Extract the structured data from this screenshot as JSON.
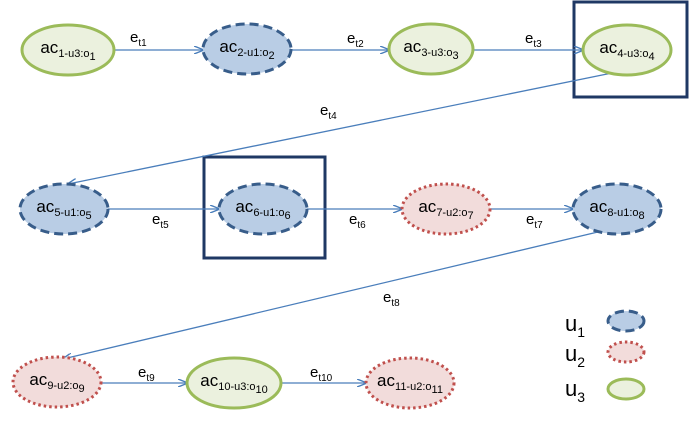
{
  "colors": {
    "u1_fill": "#b9cde5",
    "u1_stroke": "#385d8a",
    "u2_fill": "#f2dcdb",
    "u2_stroke": "#c0504d",
    "u3_fill": "#ebf1de",
    "u3_stroke": "#9bbb59",
    "edge": "#4a7ebb",
    "highlight_box": "#1f3864"
  },
  "nodes": [
    {
      "id": "ac1",
      "main": "ac",
      "sub": "1-u3:o",
      "subsub": "1",
      "user": "u3"
    },
    {
      "id": "ac2",
      "main": "ac",
      "sub": "2-u1:o",
      "subsub": "2",
      "user": "u1"
    },
    {
      "id": "ac3",
      "main": "ac",
      "sub": "3-u3:o",
      "subsub": "3",
      "user": "u3"
    },
    {
      "id": "ac4",
      "main": "ac",
      "sub": "4-u3:o",
      "subsub": "4",
      "user": "u3"
    },
    {
      "id": "ac5",
      "main": "ac",
      "sub": "5-u1:o",
      "subsub": "5",
      "user": "u1"
    },
    {
      "id": "ac6",
      "main": "ac",
      "sub": "6-u1:o",
      "subsub": "6",
      "user": "u1"
    },
    {
      "id": "ac7",
      "main": "ac",
      "sub": "7-u2:o",
      "subsub": "7",
      "user": "u2"
    },
    {
      "id": "ac8",
      "main": "ac",
      "sub": "8-u1:o",
      "subsub": "8",
      "user": "u1"
    },
    {
      "id": "ac9",
      "main": "ac",
      "sub": "9-u2:o",
      "subsub": "9",
      "user": "u2"
    },
    {
      "id": "ac10",
      "main": "ac",
      "sub": "10-u3:o",
      "subsub": "10",
      "user": "u3"
    },
    {
      "id": "ac11",
      "main": "ac",
      "sub": "11-u2:o",
      "subsub": "11",
      "user": "u2"
    }
  ],
  "edges": [
    {
      "from": "ac1",
      "to": "ac2",
      "main": "e",
      "sub": "t1"
    },
    {
      "from": "ac2",
      "to": "ac3",
      "main": "e",
      "sub": "t2"
    },
    {
      "from": "ac3",
      "to": "ac4",
      "main": "e",
      "sub": "t3"
    },
    {
      "from": "ac4",
      "to": "ac5",
      "main": "e",
      "sub": "t4"
    },
    {
      "from": "ac5",
      "to": "ac6",
      "main": "e",
      "sub": "t5"
    },
    {
      "from": "ac6",
      "to": "ac7",
      "main": "e",
      "sub": "t6"
    },
    {
      "from": "ac7",
      "to": "ac8",
      "main": "e",
      "sub": "t7"
    },
    {
      "from": "ac8",
      "to": "ac9",
      "main": "e",
      "sub": "t8"
    },
    {
      "from": "ac9",
      "to": "ac10",
      "main": "e",
      "sub": "t9"
    },
    {
      "from": "ac10",
      "to": "ac11",
      "main": "e",
      "sub": "t10"
    }
  ],
  "highlighted": [
    "ac4",
    "ac6"
  ],
  "legend": [
    {
      "main": "u",
      "sub": "1",
      "user": "u1"
    },
    {
      "main": "u",
      "sub": "2",
      "user": "u2"
    },
    {
      "main": "u",
      "sub": "3",
      "user": "u3"
    }
  ]
}
